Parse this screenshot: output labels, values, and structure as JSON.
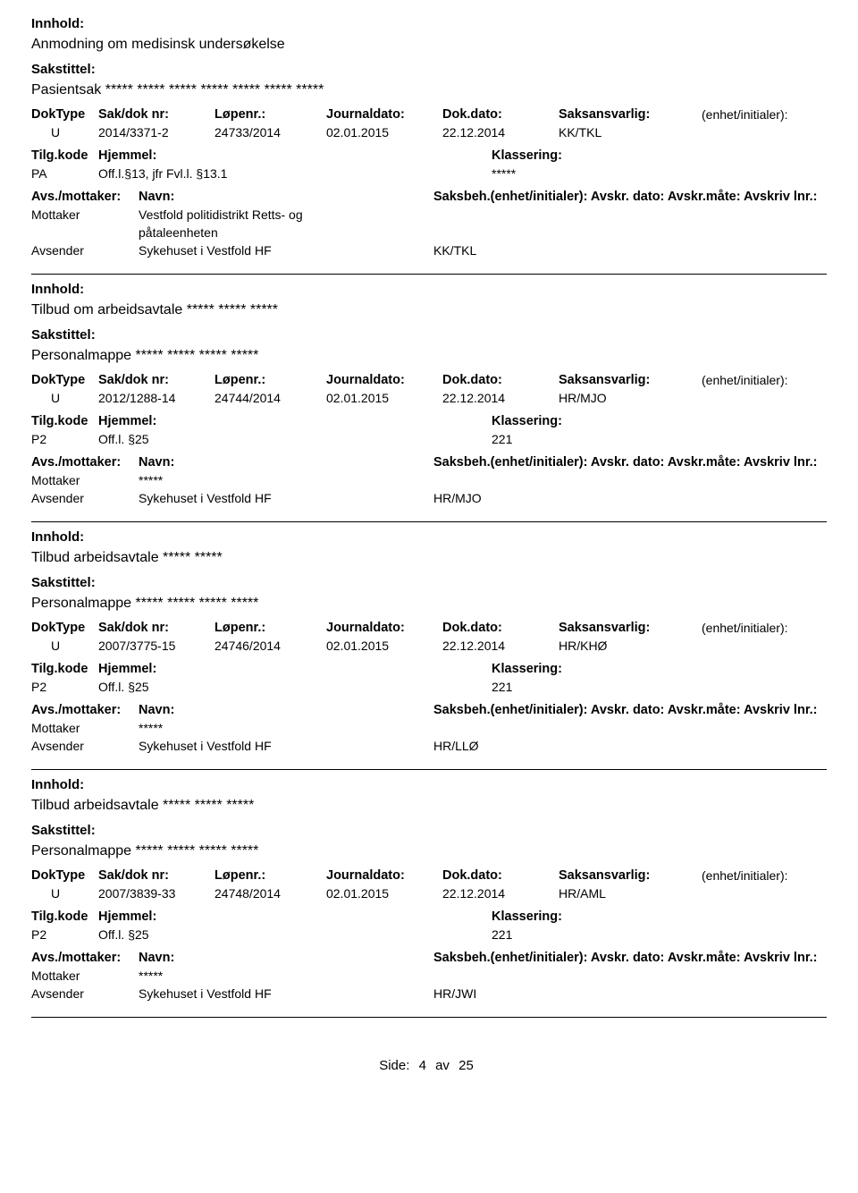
{
  "labels": {
    "innhold": "Innhold:",
    "sakstittel": "Sakstittel:",
    "doktype": "DokType",
    "sakdok": "Sak/dok nr:",
    "lopenr": "Løpenr.:",
    "jdato": "Journaldato:",
    "ddato": "Dok.dato:",
    "saksansvarlig": "Saksansvarlig:",
    "enhet": "(enhet/initialer):",
    "tilgkode": "Tilg.kode",
    "hjemmel": "Hjemmel:",
    "klassering": "Klassering:",
    "avsmott": "Avs./mottaker:",
    "navn": "Navn:",
    "saksbeh_line": "Saksbeh.(enhet/initialer): Avskr. dato:  Avskr.måte:  Avskriv lnr.:",
    "mottaker": "Mottaker",
    "avsender": "Avsender"
  },
  "entries": [
    {
      "innhold": "Anmodning om medisinsk undersøkelse",
      "sakstittel": "Pasientsak ***** ***** ***** ***** ***** ***** *****",
      "doktype": "U",
      "sakdok": "2014/3371-2",
      "lopenr": "24733/2014",
      "jdato": "02.01.2015",
      "ddato": "22.12.2014",
      "saksansvarlig": "KK/TKL",
      "tilg": "PA",
      "hjemmel": "Off.l.§13, jfr Fvl.l. §13.1",
      "klassering": "*****",
      "mottaker_navn": "Vestfold politidistrikt Retts- og",
      "mottaker_navn2": "påtaleenheten",
      "avsender_navn": "Sykehuset i Vestfold HF",
      "avsender_code": "KK/TKL"
    },
    {
      "innhold": "Tilbud om arbeidsavtale ***** ***** *****",
      "sakstittel": "Personalmappe ***** ***** ***** *****",
      "doktype": "U",
      "sakdok": "2012/1288-14",
      "lopenr": "24744/2014",
      "jdato": "02.01.2015",
      "ddato": "22.12.2014",
      "saksansvarlig": "HR/MJO",
      "tilg": "P2",
      "hjemmel": "Off.l. §25",
      "klassering": "221",
      "mottaker_navn": "*****",
      "avsender_navn": "Sykehuset i Vestfold HF",
      "avsender_code": "HR/MJO"
    },
    {
      "innhold": "Tilbud arbeidsavtale ***** *****",
      "sakstittel": "Personalmappe ***** ***** ***** *****",
      "doktype": "U",
      "sakdok": "2007/3775-15",
      "lopenr": "24746/2014",
      "jdato": "02.01.2015",
      "ddato": "22.12.2014",
      "saksansvarlig": "HR/KHØ",
      "tilg": "P2",
      "hjemmel": "Off.l. §25",
      "klassering": "221",
      "mottaker_navn": "*****",
      "avsender_navn": "Sykehuset i Vestfold HF",
      "avsender_code": "HR/LLØ"
    },
    {
      "innhold": "Tilbud arbeidsavtale ***** ***** *****",
      "sakstittel": "Personalmappe ***** ***** ***** *****",
      "doktype": "U",
      "sakdok": "2007/3839-33",
      "lopenr": "24748/2014",
      "jdato": "02.01.2015",
      "ddato": "22.12.2014",
      "saksansvarlig": "HR/AML",
      "tilg": "P2",
      "hjemmel": "Off.l. §25",
      "klassering": "221",
      "mottaker_navn": "*****",
      "avsender_navn": "Sykehuset i Vestfold HF",
      "avsender_code": "HR/JWI"
    }
  ],
  "footer": {
    "prefix": "Side:",
    "current": "4",
    "sep": "av",
    "total": "25"
  }
}
